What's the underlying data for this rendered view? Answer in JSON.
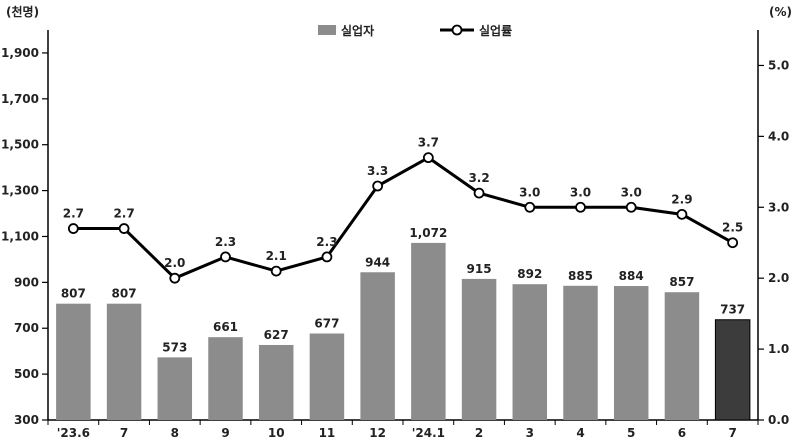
{
  "chart_data": {
    "type": "bar",
    "left_unit": "(천명)",
    "right_unit": "(%)",
    "categories": [
      "'23.6",
      "7",
      "8",
      "9",
      "10",
      "11",
      "12",
      "'24.1",
      "2",
      "3",
      "4",
      "5",
      "6",
      "7"
    ],
    "series": [
      {
        "name": "실업자",
        "type": "bar",
        "axis": "left",
        "values": [
          807,
          807,
          573,
          661,
          627,
          677,
          944,
          1072,
          915,
          892,
          885,
          884,
          857,
          737
        ],
        "labels": [
          "807",
          "807",
          "573",
          "661",
          "627",
          "677",
          "944",
          "1,072",
          "915",
          "892",
          "885",
          "884",
          "857",
          "737"
        ],
        "color": "#8c8c8c",
        "highlight_color": "#3c3c3c",
        "highlight_index": 13
      },
      {
        "name": "실업률",
        "type": "line",
        "axis": "right",
        "values": [
          2.7,
          2.7,
          2.0,
          2.3,
          2.1,
          2.3,
          3.3,
          3.7,
          3.2,
          3.0,
          3.0,
          3.0,
          2.9,
          2.5
        ],
        "labels": [
          "2.7",
          "2.7",
          "2.0",
          "2.3",
          "2.1",
          "2.3",
          "3.3",
          "3.7",
          "3.2",
          "3.0",
          "3.0",
          "3.0",
          "2.9",
          "2.5"
        ],
        "color": "#000000"
      }
    ],
    "y_left": {
      "ylim": [
        300,
        2000
      ],
      "ticks": [
        300,
        500,
        700,
        900,
        1100,
        1300,
        1500,
        1700,
        1900
      ],
      "tick_labels": [
        "300",
        "500",
        "700",
        "900",
        "1,100",
        "1,300",
        "1,500",
        "1,700",
        "1,900"
      ]
    },
    "y_right": {
      "ylim": [
        0,
        5.5
      ],
      "ticks": [
        0,
        1,
        2,
        3,
        4,
        5
      ],
      "tick_labels": [
        "0.0",
        "1.0",
        "2.0",
        "3.0",
        "4.0",
        "5.0"
      ]
    },
    "grid": false,
    "legend_position": "top-center"
  }
}
